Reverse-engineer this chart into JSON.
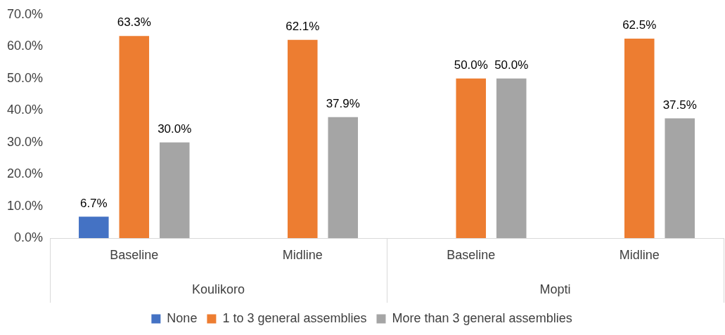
{
  "chart_data": {
    "type": "bar",
    "categories": [
      "Baseline",
      "Midline",
      "Baseline",
      "Midline"
    ],
    "annotations": [
      "Koulikoro",
      "Mopti"
    ],
    "series": [
      {
        "name": "None",
        "color": "#4472c4",
        "values": [
          6.7,
          null,
          null,
          null
        ],
        "value_labels": [
          "6.7%",
          null,
          null,
          null
        ]
      },
      {
        "name": "1 to 3 general assemblies",
        "color": "#ed7d31",
        "values": [
          63.3,
          62.1,
          50.0,
          62.5
        ],
        "value_labels": [
          "63.3%",
          "62.1%",
          "50.0%",
          "62.5%"
        ]
      },
      {
        "name": "More than 3 general assemblies",
        "color": "#a5a5a5",
        "values": [
          30.0,
          37.9,
          50.0,
          37.5
        ],
        "value_labels": [
          "30.0%",
          "37.9%",
          "50.0%",
          "37.5%"
        ]
      }
    ],
    "ylim": [
      0,
      70
    ],
    "yticks": [
      {
        "value": 0,
        "label": "0.0%"
      },
      {
        "value": 10,
        "label": "10.0%"
      },
      {
        "value": 20,
        "label": "20.0%"
      },
      {
        "value": 30,
        "label": "30.0%"
      },
      {
        "value": 40,
        "label": "40.0%"
      },
      {
        "value": 50,
        "label": "50.0%"
      },
      {
        "value": 60,
        "label": "60.0%"
      },
      {
        "value": 70,
        "label": "70.0%"
      }
    ],
    "grid": false,
    "legend": "bottom"
  }
}
